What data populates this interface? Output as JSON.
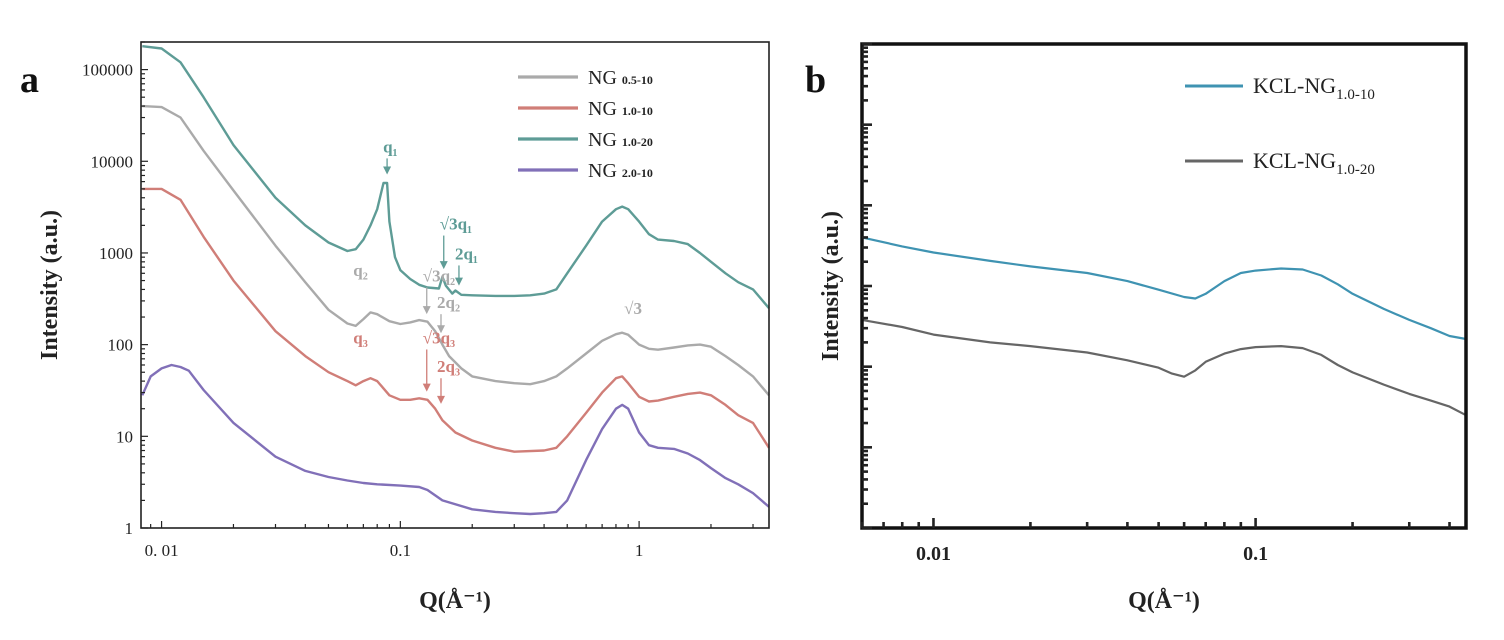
{
  "chart_data": [
    {
      "panel_label": "a",
      "type": "line",
      "xlabel": "Q(Å⁻¹)",
      "ylabel": "Intensity (a.u.)",
      "xscale": "log",
      "yscale": "log",
      "xlim": [
        0.0082,
        3.5
      ],
      "ylim": [
        1,
        200000
      ],
      "x_ticks": [
        {
          "value": 0.01,
          "label": "0. 01"
        },
        {
          "value": 0.1,
          "label": "0.1"
        },
        {
          "value": 1,
          "label": "1"
        }
      ],
      "y_ticks": [
        {
          "value": 1,
          "label": "1"
        },
        {
          "value": 10,
          "label": "10"
        },
        {
          "value": 100,
          "label": "100"
        },
        {
          "value": 1000,
          "label": "1000"
        },
        {
          "value": 10000,
          "label": "10000"
        },
        {
          "value": 100000,
          "label": "100000"
        }
      ],
      "grid": false,
      "legend_position": "top-right",
      "series": [
        {
          "name": "NG",
          "subscript": "0.5-10",
          "color": "#aaaaaa",
          "points": [
            [
              0.0083,
              40000
            ],
            [
              0.01,
              39000
            ],
            [
              0.012,
              30000
            ],
            [
              0.015,
              13000
            ],
            [
              0.02,
              4800
            ],
            [
              0.03,
              1200
            ],
            [
              0.04,
              480
            ],
            [
              0.05,
              240
            ],
            [
              0.06,
              170
            ],
            [
              0.065,
              160
            ],
            [
              0.07,
              190
            ],
            [
              0.075,
              225
            ],
            [
              0.08,
              215
            ],
            [
              0.09,
              180
            ],
            [
              0.1,
              168
            ],
            [
              0.11,
              175
            ],
            [
              0.12,
              185
            ],
            [
              0.13,
              178
            ],
            [
              0.14,
              140
            ],
            [
              0.15,
              100
            ],
            [
              0.16,
              75
            ],
            [
              0.18,
              55
            ],
            [
              0.2,
              45
            ],
            [
              0.25,
              40
            ],
            [
              0.3,
              38
            ],
            [
              0.35,
              37
            ],
            [
              0.4,
              40
            ],
            [
              0.45,
              45
            ],
            [
              0.5,
              55
            ],
            [
              0.6,
              80
            ],
            [
              0.7,
              110
            ],
            [
              0.8,
              130
            ],
            [
              0.85,
              135
            ],
            [
              0.9,
              128
            ],
            [
              1.0,
              100
            ],
            [
              1.1,
              90
            ],
            [
              1.2,
              88
            ],
            [
              1.4,
              93
            ],
            [
              1.6,
              98
            ],
            [
              1.8,
              100
            ],
            [
              2.0,
              95
            ],
            [
              2.3,
              75
            ],
            [
              2.6,
              60
            ],
            [
              3.0,
              45
            ],
            [
              3.5,
              28
            ]
          ]
        },
        {
          "name": "NG",
          "subscript": "1.0-10",
          "color": "#d07e78",
          "points": [
            [
              0.0083,
              5000
            ],
            [
              0.01,
              5000
            ],
            [
              0.012,
              3800
            ],
            [
              0.015,
              1500
            ],
            [
              0.02,
              500
            ],
            [
              0.03,
              140
            ],
            [
              0.04,
              75
            ],
            [
              0.05,
              50
            ],
            [
              0.06,
              40
            ],
            [
              0.065,
              36
            ],
            [
              0.07,
              40
            ],
            [
              0.075,
              43
            ],
            [
              0.08,
              40
            ],
            [
              0.09,
              28
            ],
            [
              0.1,
              25
            ],
            [
              0.11,
              25
            ],
            [
              0.12,
              26
            ],
            [
              0.13,
              25
            ],
            [
              0.14,
              20
            ],
            [
              0.15,
              15
            ],
            [
              0.17,
              11
            ],
            [
              0.2,
              9
            ],
            [
              0.25,
              7.5
            ],
            [
              0.3,
              6.8
            ],
            [
              0.4,
              7.0
            ],
            [
              0.45,
              7.5
            ],
            [
              0.5,
              10
            ],
            [
              0.6,
              18
            ],
            [
              0.7,
              30
            ],
            [
              0.8,
              43
            ],
            [
              0.85,
              45
            ],
            [
              0.9,
              38
            ],
            [
              1.0,
              27
            ],
            [
              1.1,
              24
            ],
            [
              1.2,
              24.5
            ],
            [
              1.4,
              27
            ],
            [
              1.6,
              29
            ],
            [
              1.8,
              30
            ],
            [
              2.0,
              28
            ],
            [
              2.3,
              22
            ],
            [
              2.6,
              17
            ],
            [
              3.0,
              14
            ],
            [
              3.5,
              7.5
            ]
          ]
        },
        {
          "name": "NG",
          "subscript": "1.0-20",
          "color": "#5e9c96",
          "points": [
            [
              0.0083,
              180000
            ],
            [
              0.01,
              170000
            ],
            [
              0.012,
              120000
            ],
            [
              0.015,
              50000
            ],
            [
              0.02,
              15000
            ],
            [
              0.03,
              4000
            ],
            [
              0.04,
              2000
            ],
            [
              0.05,
              1300
            ],
            [
              0.06,
              1050
            ],
            [
              0.065,
              1100
            ],
            [
              0.07,
              1400
            ],
            [
              0.075,
              2000
            ],
            [
              0.08,
              3000
            ],
            [
              0.085,
              5800
            ],
            [
              0.088,
              5800
            ],
            [
              0.09,
              2200
            ],
            [
              0.095,
              900
            ],
            [
              0.1,
              650
            ],
            [
              0.11,
              520
            ],
            [
              0.12,
              450
            ],
            [
              0.13,
              420
            ],
            [
              0.145,
              410
            ],
            [
              0.15,
              550
            ],
            [
              0.155,
              440
            ],
            [
              0.165,
              360
            ],
            [
              0.17,
              390
            ],
            [
              0.18,
              350
            ],
            [
              0.2,
              345
            ],
            [
              0.25,
              340
            ],
            [
              0.3,
              340
            ],
            [
              0.35,
              345
            ],
            [
              0.4,
              360
            ],
            [
              0.45,
              400
            ],
            [
              0.5,
              600
            ],
            [
              0.6,
              1200
            ],
            [
              0.7,
              2200
            ],
            [
              0.8,
              3000
            ],
            [
              0.85,
              3200
            ],
            [
              0.9,
              3000
            ],
            [
              1.0,
              2200
            ],
            [
              1.1,
              1600
            ],
            [
              1.2,
              1400
            ],
            [
              1.4,
              1350
            ],
            [
              1.6,
              1250
            ],
            [
              1.8,
              1000
            ],
            [
              2.0,
              800
            ],
            [
              2.3,
              600
            ],
            [
              2.6,
              480
            ],
            [
              3.0,
              400
            ],
            [
              3.5,
              250
            ]
          ]
        },
        {
          "name": "NG",
          "subscript": "2.0-10",
          "color": "#8170b8",
          "points": [
            [
              0.0083,
              28
            ],
            [
              0.009,
              45
            ],
            [
              0.01,
              55
            ],
            [
              0.011,
              60
            ],
            [
              0.012,
              57
            ],
            [
              0.013,
              52
            ],
            [
              0.015,
              32
            ],
            [
              0.02,
              14
            ],
            [
              0.03,
              6.0
            ],
            [
              0.04,
              4.2
            ],
            [
              0.05,
              3.6
            ],
            [
              0.06,
              3.3
            ],
            [
              0.07,
              3.1
            ],
            [
              0.08,
              3.0
            ],
            [
              0.1,
              2.9
            ],
            [
              0.12,
              2.8
            ],
            [
              0.13,
              2.6
            ],
            [
              0.15,
              2.0
            ],
            [
              0.2,
              1.6
            ],
            [
              0.25,
              1.5
            ],
            [
              0.3,
              1.45
            ],
            [
              0.35,
              1.42
            ],
            [
              0.4,
              1.45
            ],
            [
              0.45,
              1.5
            ],
            [
              0.5,
              2.0
            ],
            [
              0.6,
              5.5
            ],
            [
              0.7,
              12
            ],
            [
              0.8,
              20
            ],
            [
              0.85,
              22
            ],
            [
              0.9,
              20
            ],
            [
              1.0,
              11
            ],
            [
              1.1,
              8
            ],
            [
              1.2,
              7.5
            ],
            [
              1.4,
              7.3
            ],
            [
              1.6,
              6.5
            ],
            [
              1.8,
              5.5
            ],
            [
              2.0,
              4.5
            ],
            [
              2.3,
              3.5
            ],
            [
              2.6,
              3.0
            ],
            [
              3.0,
              2.4
            ],
            [
              3.5,
              1.7
            ]
          ]
        }
      ],
      "annotations": [
        {
          "text": "q₁",
          "color": "#5e9c96",
          "x": 0.088,
          "y": 12500,
          "arrow": true,
          "arrow_to": 7000
        },
        {
          "text": "√3q₁",
          "color": "#5e9c96",
          "x": 0.152,
          "y": 1800,
          "arrow": true,
          "arrow_to": 650
        },
        {
          "text": "2q₁",
          "color": "#5e9c96",
          "x": 0.176,
          "y": 850,
          "arrow": true,
          "arrow_to": 430
        },
        {
          "text": "q₂",
          "color": "#aaaaaa",
          "x": 0.066,
          "y": 560,
          "arrow": false
        },
        {
          "text": "√3q₂",
          "color": "#aaaaaa",
          "x": 0.129,
          "y": 490,
          "arrow": true,
          "arrow_to": 210
        },
        {
          "text": "2q₂",
          "color": "#aaaaaa",
          "x": 0.148,
          "y": 250,
          "arrow": true,
          "arrow_to": 130
        },
        {
          "text": "√3",
          "color": "#aaaaaa",
          "x": 0.9,
          "y": 215,
          "arrow": false
        },
        {
          "text": "q₃",
          "color": "#d07e78",
          "x": 0.066,
          "y": 103,
          "arrow": false
        },
        {
          "text": "√3q₃",
          "color": "#d07e78",
          "x": 0.129,
          "y": 103,
          "arrow": true,
          "arrow_to": 30
        },
        {
          "text": "2q₃",
          "color": "#d07e78",
          "x": 0.148,
          "y": 50,
          "arrow": true,
          "arrow_to": 22
        }
      ]
    },
    {
      "panel_label": "b",
      "type": "line",
      "xlabel": "Q(Å⁻¹)",
      "ylabel": "Intensity (a.u.)",
      "xscale": "log",
      "yscale": "log",
      "xlim": [
        0.006,
        0.45
      ],
      "ylim": [
        1,
        1000000
      ],
      "x_ticks": [
        {
          "value": 0.01,
          "label": "0.01"
        },
        {
          "value": 0.1,
          "label": "0.1"
        }
      ],
      "y_tick_labels_shown": false,
      "grid": false,
      "legend_position": "top-right",
      "series": [
        {
          "name": "KCL-NG",
          "subscript": "1.0-10",
          "color": "#3f93b2",
          "points": [
            [
              0.006,
              4000
            ],
            [
              0.008,
              3100
            ],
            [
              0.01,
              2600
            ],
            [
              0.015,
              2050
            ],
            [
              0.02,
              1750
            ],
            [
              0.03,
              1450
            ],
            [
              0.04,
              1150
            ],
            [
              0.05,
              900
            ],
            [
              0.06,
              730
            ],
            [
              0.065,
              700
            ],
            [
              0.07,
              800
            ],
            [
              0.08,
              1150
            ],
            [
              0.09,
              1450
            ],
            [
              0.1,
              1550
            ],
            [
              0.12,
              1650
            ],
            [
              0.14,
              1600
            ],
            [
              0.16,
              1350
            ],
            [
              0.18,
              1050
            ],
            [
              0.2,
              800
            ],
            [
              0.25,
              520
            ],
            [
              0.3,
              380
            ],
            [
              0.35,
              300
            ],
            [
              0.4,
              240
            ],
            [
              0.45,
              220
            ]
          ]
        },
        {
          "name": "KCL-NG",
          "subscript": "1.0-20",
          "color": "#666666",
          "points": [
            [
              0.006,
              380
            ],
            [
              0.008,
              310
            ],
            [
              0.01,
              250
            ],
            [
              0.015,
              200
            ],
            [
              0.02,
              180
            ],
            [
              0.03,
              150
            ],
            [
              0.04,
              120
            ],
            [
              0.05,
              97
            ],
            [
              0.055,
              82
            ],
            [
              0.06,
              75
            ],
            [
              0.065,
              90
            ],
            [
              0.07,
              115
            ],
            [
              0.08,
              145
            ],
            [
              0.09,
              165
            ],
            [
              0.1,
              175
            ],
            [
              0.12,
              180
            ],
            [
              0.14,
              170
            ],
            [
              0.16,
              140
            ],
            [
              0.18,
              105
            ],
            [
              0.2,
              85
            ],
            [
              0.25,
              60
            ],
            [
              0.3,
              46
            ],
            [
              0.35,
              38
            ],
            [
              0.4,
              32
            ],
            [
              0.45,
              25
            ]
          ]
        }
      ]
    }
  ]
}
